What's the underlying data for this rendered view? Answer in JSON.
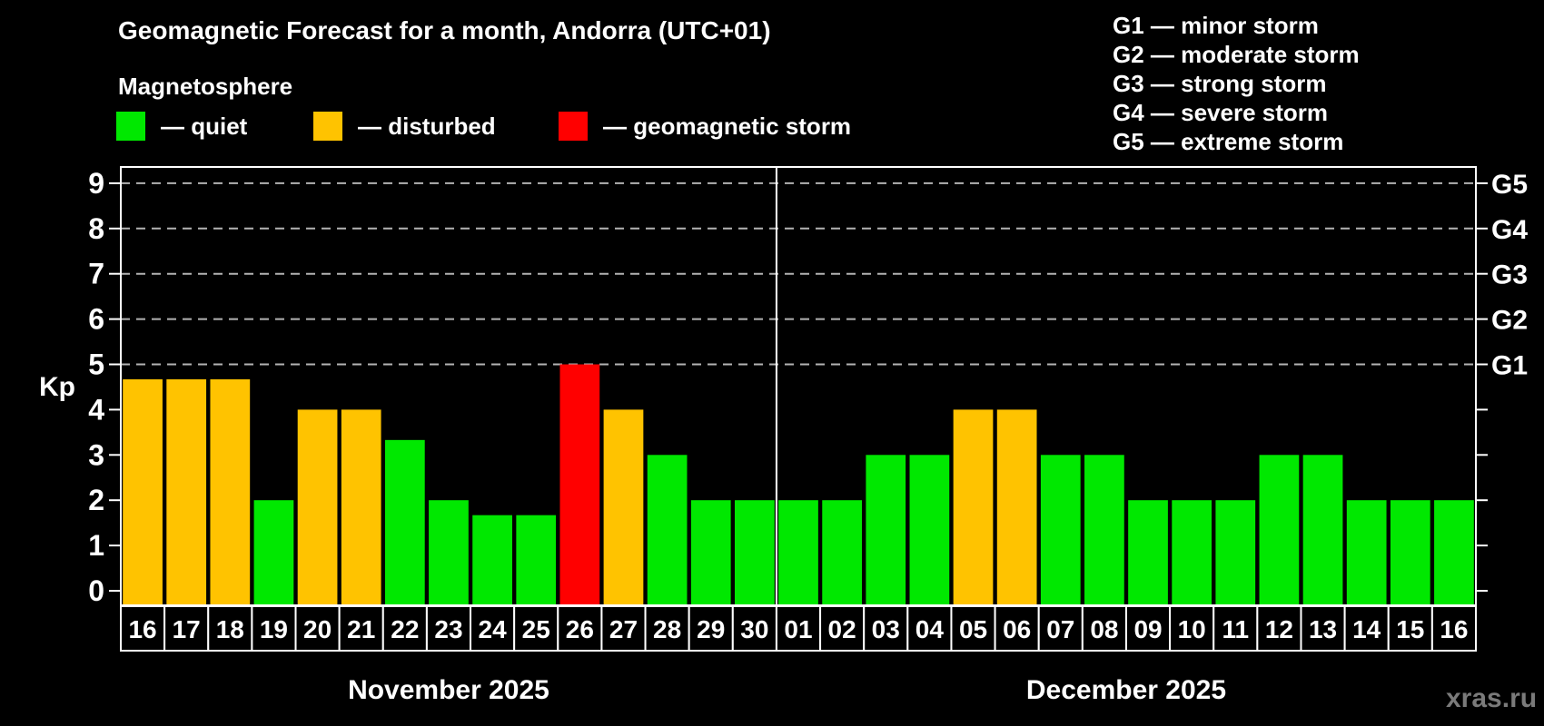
{
  "header": {
    "title": "Geomagnetic Forecast for a month, Andorra (UTC+01)",
    "subtitle": "Magnetosphere"
  },
  "legend": {
    "items": [
      {
        "key": "quiet",
        "label": "— quiet"
      },
      {
        "key": "disturbed",
        "label": "— disturbed"
      },
      {
        "key": "storm",
        "label": "— geomagnetic storm"
      }
    ]
  },
  "g_scale_legend": {
    "items": [
      {
        "label": "G1 — minor storm"
      },
      {
        "label": "G2 — moderate storm"
      },
      {
        "label": "G3 — strong storm"
      },
      {
        "label": "G4 — severe storm"
      },
      {
        "label": "G5 — extreme storm"
      }
    ]
  },
  "colors": {
    "quiet": "#00e800",
    "disturbed": "#ffc300",
    "storm": "#ff0000",
    "grid": "#b3b3b3",
    "axis": "#ffffff",
    "watermark": "#7a7a7a"
  },
  "watermark": "xras.ru",
  "chart_data": {
    "type": "bar",
    "title": "Geomagnetic Forecast for a month, Andorra (UTC+01)",
    "ylabel": "Kp",
    "xlabel": "",
    "ylim": [
      0,
      9
    ],
    "y_ticks": [
      "0",
      "1",
      "2",
      "3",
      "4",
      "5",
      "6",
      "7",
      "8",
      "9"
    ],
    "grid_levels": [
      5,
      6,
      7,
      8,
      9
    ],
    "legend_position": "top-left",
    "right_axis": [
      {
        "label": "G1",
        "kp": 5
      },
      {
        "label": "G2",
        "kp": 6
      },
      {
        "label": "G3",
        "kp": 7
      },
      {
        "label": "G4",
        "kp": 8
      },
      {
        "label": "G5",
        "kp": 9
      }
    ],
    "months": [
      {
        "key": "november",
        "label": "November 2025",
        "days": [
          {
            "day": "16",
            "kp": 4.67,
            "condition": "disturbed"
          },
          {
            "day": "17",
            "kp": 4.67,
            "condition": "disturbed"
          },
          {
            "day": "18",
            "kp": 4.67,
            "condition": "disturbed"
          },
          {
            "day": "19",
            "kp": 2,
            "condition": "quiet"
          },
          {
            "day": "20",
            "kp": 4,
            "condition": "disturbed"
          },
          {
            "day": "21",
            "kp": 4,
            "condition": "disturbed"
          },
          {
            "day": "22",
            "kp": 3.33,
            "condition": "quiet"
          },
          {
            "day": "23",
            "kp": 2,
            "condition": "quiet"
          },
          {
            "day": "24",
            "kp": 1.67,
            "condition": "quiet"
          },
          {
            "day": "25",
            "kp": 1.67,
            "condition": "quiet"
          },
          {
            "day": "26",
            "kp": 5,
            "condition": "storm"
          },
          {
            "day": "27",
            "kp": 4,
            "condition": "disturbed"
          },
          {
            "day": "28",
            "kp": 3,
            "condition": "quiet"
          },
          {
            "day": "29",
            "kp": 2,
            "condition": "quiet"
          },
          {
            "day": "30",
            "kp": 2,
            "condition": "quiet"
          }
        ]
      },
      {
        "key": "december",
        "label": "December 2025",
        "days": [
          {
            "day": "01",
            "kp": 2,
            "condition": "quiet"
          },
          {
            "day": "02",
            "kp": 2,
            "condition": "quiet"
          },
          {
            "day": "03",
            "kp": 3,
            "condition": "quiet"
          },
          {
            "day": "04",
            "kp": 3,
            "condition": "quiet"
          },
          {
            "day": "05",
            "kp": 4,
            "condition": "disturbed"
          },
          {
            "day": "06",
            "kp": 4,
            "condition": "disturbed"
          },
          {
            "day": "07",
            "kp": 3,
            "condition": "quiet"
          },
          {
            "day": "08",
            "kp": 3,
            "condition": "quiet"
          },
          {
            "day": "09",
            "kp": 2,
            "condition": "quiet"
          },
          {
            "day": "10",
            "kp": 2,
            "condition": "quiet"
          },
          {
            "day": "11",
            "kp": 2,
            "condition": "quiet"
          },
          {
            "day": "12",
            "kp": 3,
            "condition": "quiet"
          },
          {
            "day": "13",
            "kp": 3,
            "condition": "quiet"
          },
          {
            "day": "14",
            "kp": 2,
            "condition": "quiet"
          },
          {
            "day": "15",
            "kp": 2,
            "condition": "quiet"
          },
          {
            "day": "16",
            "kp": 2,
            "condition": "quiet"
          }
        ]
      }
    ]
  }
}
